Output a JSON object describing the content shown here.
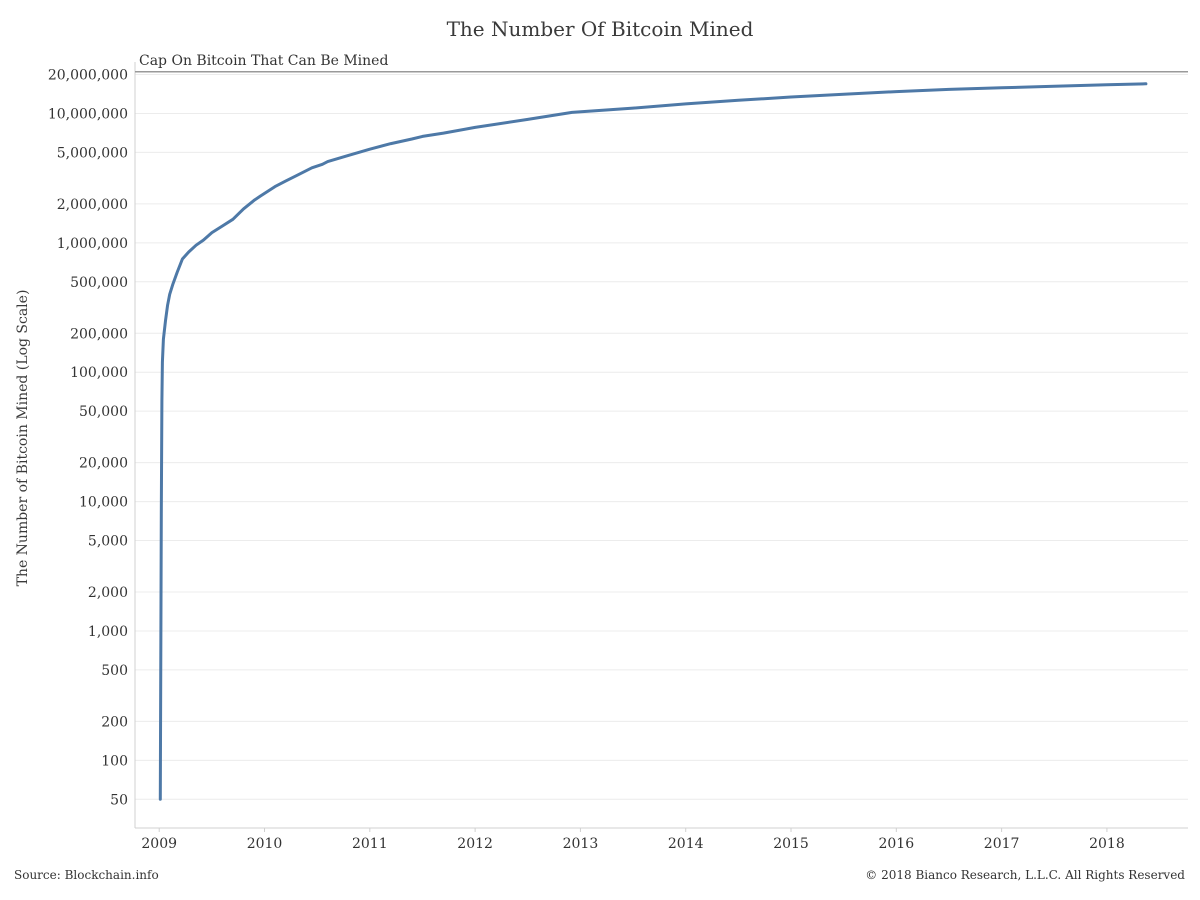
{
  "title": "The Number Of Bitcoin Mined",
  "footer": {
    "source": "Source: Blockchain.info",
    "copyright": "© 2018 Bianco Research, L.L.C. All Rights Reserved"
  },
  "colors": {
    "line": "#4e79a7",
    "cap_line": "#9a9a9a",
    "grid": "#ececec",
    "text": "#333333"
  },
  "chart_data": {
    "type": "line",
    "title": "The Number Of Bitcoin Mined",
    "xlabel": "",
    "ylabel": "The Number of Bitcoin Mined (Log Scale)",
    "y_scale": "log",
    "ylim": [
      30,
      25000000
    ],
    "xlim": [
      2008.77,
      2018.77
    ],
    "x_tick_labels": [
      "2009",
      "2010",
      "2011",
      "2012",
      "2013",
      "2014",
      "2015",
      "2016",
      "2017",
      "2018"
    ],
    "y_tick_values": [
      50,
      100,
      200,
      500,
      1000,
      2000,
      5000,
      10000,
      20000,
      50000,
      100000,
      200000,
      500000,
      1000000,
      2000000,
      5000000,
      10000000,
      20000000
    ],
    "y_tick_labels": [
      "50",
      "100",
      "200",
      "500",
      "1,000",
      "2,000",
      "5,000",
      "10,000",
      "20,000",
      "50,000",
      "100,000",
      "200,000",
      "500,000",
      "1,000,000",
      "2,000,000",
      "5,000,000",
      "10,000,000",
      "20,000,000"
    ],
    "grid": true,
    "annotations": [
      {
        "text": "Cap On Bitcoin That Can Be Mined",
        "y": 21000000
      }
    ],
    "series": [
      {
        "x": [
          2009.01,
          2009.02,
          2009.025,
          2009.03,
          2009.04,
          2009.06,
          2009.08,
          2009.1,
          2009.13,
          2009.17,
          2009.22,
          2009.28,
          2009.35,
          2009.42,
          2009.5,
          2009.6,
          2009.7,
          2009.8,
          2009.9,
          2009.96,
          2010.1,
          2010.2,
          2010.3,
          2010.45,
          2010.55,
          2010.6,
          2010.8,
          2011.0,
          2011.2,
          2011.4,
          2011.5,
          2011.7,
          2012.0,
          2012.5,
          2012.92,
          2013.5,
          2014.0,
          2014.5,
          2015.0,
          2015.5,
          2016.0,
          2016.5,
          2017.0,
          2017.5,
          2018.0,
          2018.37
        ],
        "y": [
          50,
          8000,
          60000,
          120000,
          180000,
          250000,
          330000,
          400000,
          480000,
          590000,
          750000,
          850000,
          960000,
          1050000,
          1200000,
          1350000,
          1520000,
          1830000,
          2130000,
          2300000,
          2720000,
          3000000,
          3300000,
          3800000,
          4050000,
          4250000,
          4750000,
          5300000,
          5850000,
          6350000,
          6650000,
          7050000,
          7800000,
          9000000,
          10200000,
          11000000,
          11850000,
          12650000,
          13400000,
          14100000,
          14750000,
          15350000,
          15800000,
          16250000,
          16700000,
          16950000
        ]
      }
    ]
  }
}
